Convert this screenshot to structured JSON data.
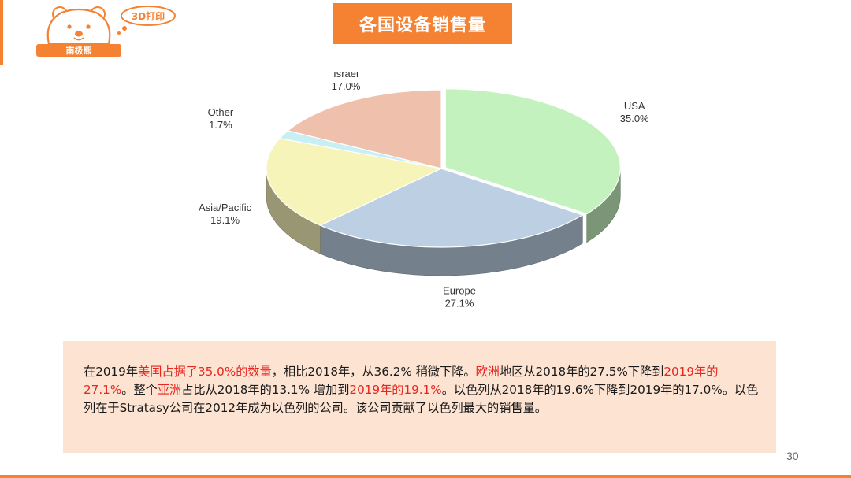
{
  "header": {
    "logo_badge": "3D打印",
    "logo_name": "南极熊",
    "title": "各国设备销售量"
  },
  "chart_data": {
    "type": "pie",
    "title": "",
    "slices": [
      {
        "label": "USA",
        "value": 35.0,
        "value_label": "35.0%",
        "color": "#c4f2be"
      },
      {
        "label": "Europe",
        "value": 27.1,
        "value_label": "27.1%",
        "color": "#bccfe3"
      },
      {
        "label": "Asia/Pacific",
        "value": 19.1,
        "value_label": "19.1%",
        "color": "#f7f4b9"
      },
      {
        "label": "Other",
        "value": 1.7,
        "value_label": "1.7%",
        "color": "#c8eff3"
      },
      {
        "label": "Israel",
        "value": 17.0,
        "value_label": "17.0%",
        "color": "#efc1ac"
      }
    ],
    "style": "3d-exploded-oval"
  },
  "description": {
    "segments": [
      {
        "text": "在2019年",
        "highlight": false
      },
      {
        "text": "美国占据了35.0%的数量",
        "highlight": true
      },
      {
        "text": "，相比2018年，从36.2% 稍微下降。",
        "highlight": false
      },
      {
        "text": "欧洲",
        "highlight": true
      },
      {
        "text": "地区从2018年的27.5%下降到",
        "highlight": false
      },
      {
        "text": "2019年的27.1%",
        "highlight": true
      },
      {
        "text": "。整个",
        "highlight": false
      },
      {
        "text": "亚洲",
        "highlight": true
      },
      {
        "text": "占比从2018年的13.1% 增加到",
        "highlight": false
      },
      {
        "text": "2019年的19.1%",
        "highlight": true
      },
      {
        "text": "。以色列从2018年的19.6%下降到2019年的17.0%。以色列在于Stratasy公司在2012年成为以色列的公司。该公司贡献了以色列最大的销售量。",
        "highlight": false
      }
    ]
  },
  "footer": {
    "page_number": "30"
  },
  "colors": {
    "accent": "#f58232",
    "text_highlight": "#e8251f",
    "text_box_bg": "#fde3d2"
  }
}
